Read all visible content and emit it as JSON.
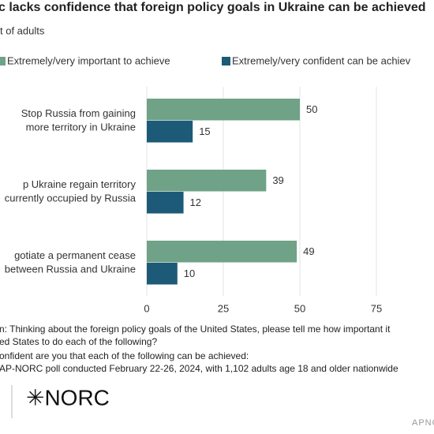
{
  "chart_data": {
    "type": "barh",
    "title": "c lacks confidence that foreign policy goals in Ukraine can be achieved",
    "subtitle": "t of adults",
    "categories": [
      [
        "Stop Russia from gaining",
        "more territory in Ukraine"
      ],
      [
        "p Ukraine regain territory",
        "currently occupied by Russia"
      ],
      [
        "gotiate a permanent cease",
        "between Russia and Ukraine"
      ]
    ],
    "series": [
      {
        "name": "Extremely/very important to achieve",
        "color": "#6fa287",
        "values": [
          50,
          39,
          49
        ]
      },
      {
        "name": "Extremely/very confident can be achiev",
        "color": "#1d5a78",
        "values": [
          15,
          12,
          10
        ]
      }
    ],
    "xlim": [
      0,
      100
    ],
    "xticks": [
      0,
      25,
      50,
      75
    ],
    "grid": true,
    "notes": [
      "n: Thinking about the foreign policy goals of the United States, please tell me how important it",
      "ed States to do each of the following?",
      "onfident are you that each of the following can be achieved:",
      "AP-NORC poll conducted February 22-26, 2024, with 1,102 adults age 18 and older nationwide"
    ],
    "logo": "✳NORC",
    "brand": "APNO"
  }
}
